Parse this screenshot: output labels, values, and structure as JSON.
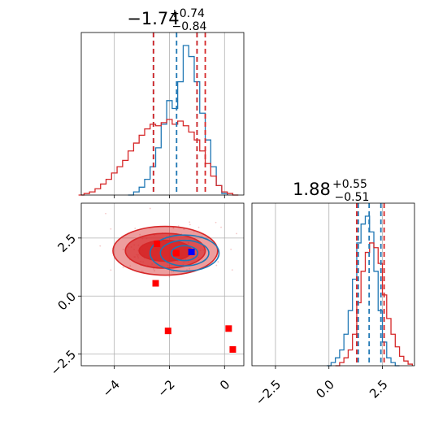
{
  "chart_data": [
    {
      "type": "histogram",
      "panel": "top-left",
      "title": {
        "median": "−1.74",
        "upper": "+0.74",
        "lower": "−0.84"
      },
      "xlim": [
        -5.2,
        0.7
      ],
      "grid": true,
      "series": [
        {
          "name": "",
          "color": "#1f77b4",
          "quantiles": [
            -2.58,
            -1.74,
            -1.0
          ],
          "x": [
            -3.4,
            -3.2,
            -3.0,
            -2.8,
            -2.6,
            -2.4,
            -2.2,
            -2.0,
            -1.8,
            -1.6,
            -1.4,
            -1.2,
            -1.0,
            -0.8,
            -0.6,
            -0.4,
            -0.2,
            0.0
          ],
          "values": [
            0.0,
            0.02,
            0.05,
            0.1,
            0.18,
            0.3,
            0.45,
            0.6,
            0.55,
            0.72,
            0.95,
            0.88,
            0.72,
            0.52,
            0.35,
            0.18,
            0.06,
            0.01
          ]
        },
        {
          "name": "",
          "color": "#d62728",
          "quantiles": [
            -2.58,
            -1.0,
            -0.7
          ],
          "x": [
            -5.2,
            -5.0,
            -4.8,
            -4.6,
            -4.4,
            -4.2,
            -4.0,
            -3.8,
            -3.6,
            -3.4,
            -3.2,
            -3.0,
            -2.8,
            -2.6,
            -2.4,
            -2.2,
            -2.0,
            -1.8,
            -1.6,
            -1.4,
            -1.2,
            -1.0,
            -0.8,
            -0.6,
            -0.4,
            -0.2,
            0.0,
            0.2,
            0.4
          ],
          "values": [
            0.0,
            0.01,
            0.02,
            0.04,
            0.07,
            0.1,
            0.14,
            0.18,
            0.22,
            0.28,
            0.33,
            0.38,
            0.42,
            0.45,
            0.44,
            0.46,
            0.48,
            0.45,
            0.47,
            0.44,
            0.4,
            0.35,
            0.28,
            0.2,
            0.12,
            0.06,
            0.02,
            0.01,
            0.0
          ]
        }
      ]
    },
    {
      "type": "histogram",
      "panel": "bottom-right",
      "title": {
        "median": "1.88",
        "upper": "+0.55",
        "lower": "−0.51"
      },
      "xlim": [
        -3.6,
        4.0
      ],
      "xticks": [
        "−2.5",
        "0.0",
        "2.5"
      ],
      "xtick_values": [
        -2.5,
        0.0,
        2.5
      ],
      "grid": true,
      "series": [
        {
          "name": "",
          "color": "#1f77b4",
          "quantiles": [
            1.37,
            1.88,
            2.43
          ],
          "x": [
            0.0,
            0.2,
            0.4,
            0.6,
            0.8,
            1.0,
            1.2,
            1.4,
            1.6,
            1.8,
            2.0,
            2.2,
            2.4,
            2.6,
            2.8,
            3.0,
            3.2
          ],
          "values": [
            0.0,
            0.02,
            0.05,
            0.1,
            0.2,
            0.35,
            0.55,
            0.78,
            0.9,
            0.95,
            0.85,
            0.6,
            0.35,
            0.15,
            0.05,
            0.02,
            0.0
          ]
        },
        {
          "name": "",
          "color": "#d62728",
          "quantiles": [
            1.3,
            2.58
          ],
          "x": [
            0.4,
            0.6,
            0.8,
            1.0,
            1.2,
            1.4,
            1.6,
            1.8,
            2.0,
            2.2,
            2.4,
            2.6,
            2.8,
            3.0,
            3.2,
            3.4,
            3.6,
            3.8
          ],
          "values": [
            0.0,
            0.02,
            0.05,
            0.1,
            0.2,
            0.4,
            0.6,
            0.72,
            0.78,
            0.75,
            0.65,
            0.45,
            0.3,
            0.2,
            0.12,
            0.06,
            0.03,
            0.01
          ]
        }
      ]
    },
    {
      "type": "contour",
      "panel": "bottom-left",
      "xlim": [
        -5.2,
        0.7
      ],
      "ylim": [
        -3.0,
        4.0
      ],
      "xticks": [
        "−4",
        "−2",
        "0"
      ],
      "xtick_values": [
        -4,
        -2,
        0
      ],
      "yticks": [
        "−2.5",
        "0.0",
        "2.5"
      ],
      "ytick_values": [
        -2.5,
        0.0,
        2.5
      ],
      "grid": true,
      "contours": [
        {
          "color": "#d62728",
          "filled": true,
          "center": [
            -2.15,
            1.95
          ],
          "levels": [
            [
              1.9,
              1.05
            ],
            [
              1.45,
              0.75
            ],
            [
              0.95,
              0.45
            ]
          ]
        },
        {
          "color": "#1f77b4",
          "filled": false,
          "center": [
            -1.45,
            1.85
          ],
          "levels": [
            [
              1.25,
              0.78
            ],
            [
              0.88,
              0.55
            ],
            [
              0.48,
              0.32
            ]
          ]
        }
      ],
      "markers": [
        {
          "x": -2.45,
          "y": 2.25,
          "color": "#ff0000"
        },
        {
          "x": -1.75,
          "y": 1.85,
          "color": "#ff0000"
        },
        {
          "x": -2.5,
          "y": 0.55,
          "color": "#ff0000"
        },
        {
          "x": -2.05,
          "y": -1.5,
          "color": "#ff0000"
        },
        {
          "x": 0.15,
          "y": -1.4,
          "color": "#ff0000"
        },
        {
          "x": 0.3,
          "y": -2.3,
          "color": "#ff0000"
        },
        {
          "x": -1.2,
          "y": 1.9,
          "color": "#0000ff"
        }
      ]
    }
  ]
}
